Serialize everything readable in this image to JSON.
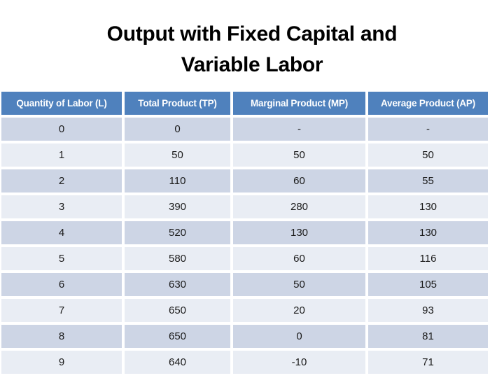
{
  "slide": {
    "title_line1": "Output with Fixed Capital and",
    "title_line2": "Variable Labor"
  },
  "table": {
    "columns": [
      "Quantity of Labor (L)",
      "Total Product (TP)",
      "Marginal Product (MP)",
      "Average Product (AP)"
    ],
    "rows": [
      [
        "0",
        "0",
        "-",
        "-"
      ],
      [
        "1",
        "50",
        "50",
        "50"
      ],
      [
        "2",
        "110",
        "60",
        "55"
      ],
      [
        "3",
        "390",
        "280",
        "130"
      ],
      [
        "4",
        "520",
        "130",
        "130"
      ],
      [
        "5",
        "580",
        "60",
        "116"
      ],
      [
        "6",
        "630",
        "50",
        "105"
      ],
      [
        "7",
        "650",
        "20",
        "93"
      ],
      [
        "8",
        "650",
        "0",
        "81"
      ],
      [
        "9",
        "640",
        "-10",
        "71"
      ]
    ]
  },
  "colors": {
    "header_bg": "#4F81BD",
    "header_text": "#FFFFFF",
    "band_dark": "#CDD5E5",
    "band_light": "#E9EDF4",
    "title_text": "#000000",
    "cell_text": "#1A1A1A"
  }
}
